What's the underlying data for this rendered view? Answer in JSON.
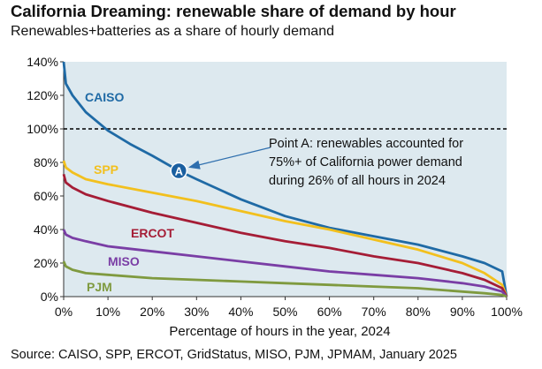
{
  "header": {
    "title": "California Dreaming: renewable share of demand by hour",
    "subtitle": "Renewables+batteries as a share of hourly demand"
  },
  "footer": {
    "source": "Source: CAISO, SPP, ERCOT, GridStatus, MISO, PJM, JPMAM, January 2025"
  },
  "annotation": {
    "marker": "A",
    "marker_x": 26,
    "marker_y": 75,
    "lines": [
      "Point A: renewables accounted for",
      "75%+ of California power demand",
      "during 26% of all hours in 2024"
    ]
  },
  "colors": {
    "plot_bg": "#dde9ef",
    "reference_line": "#000000",
    "arrow": "#2f6fae",
    "marker_fill": "#1a5fa0"
  },
  "chart_data": {
    "type": "line",
    "xlabel": "Percentage of hours in the year, 2024",
    "ylabel": "",
    "xlim": [
      0,
      100
    ],
    "ylim": [
      0,
      140
    ],
    "x_ticks": [
      0,
      10,
      20,
      30,
      40,
      50,
      60,
      70,
      80,
      90,
      100
    ],
    "y_ticks": [
      0,
      20,
      40,
      60,
      80,
      100,
      120,
      140
    ],
    "x_tick_labels": [
      "0%",
      "10%",
      "20%",
      "30%",
      "40%",
      "50%",
      "60%",
      "70%",
      "80%",
      "90%",
      "100%"
    ],
    "y_tick_labels": [
      "0%",
      "20%",
      "40%",
      "60%",
      "80%",
      "100%",
      "120%",
      "140%"
    ],
    "reference_line": {
      "y": 100,
      "style": "dashed"
    },
    "grid": false,
    "series": [
      {
        "name": "CAISO",
        "color": "#1f6aa5",
        "x": [
          0,
          0.5,
          2,
          5,
          10,
          15,
          20,
          26,
          30,
          40,
          50,
          60,
          70,
          80,
          90,
          95,
          99,
          100
        ],
        "y": [
          140,
          127,
          120,
          110,
          99,
          91,
          84,
          75,
          70,
          58,
          48,
          41,
          36,
          31,
          24,
          20,
          15,
          0
        ]
      },
      {
        "name": "SPP",
        "color": "#f2c01e",
        "x": [
          0,
          0.5,
          2,
          5,
          10,
          20,
          30,
          40,
          50,
          60,
          70,
          80,
          90,
          95,
          99,
          100
        ],
        "y": [
          81,
          77,
          74,
          70,
          67,
          62,
          57,
          51,
          45,
          40,
          34,
          28,
          20,
          14,
          7,
          0
        ]
      },
      {
        "name": "ERCOT",
        "color": "#a51d36",
        "x": [
          0,
          0.5,
          2,
          5,
          10,
          20,
          30,
          40,
          50,
          60,
          70,
          80,
          90,
          95,
          99,
          100
        ],
        "y": [
          73,
          68,
          65,
          61,
          57,
          50,
          44,
          38,
          33,
          29,
          24,
          20,
          14,
          10,
          5,
          0
        ]
      },
      {
        "name": "MISO",
        "color": "#7a3ea5",
        "x": [
          0,
          0.5,
          2,
          5,
          10,
          20,
          30,
          40,
          50,
          60,
          70,
          80,
          90,
          95,
          99,
          100
        ],
        "y": [
          40,
          37,
          35,
          33,
          30,
          27,
          24,
          21,
          18,
          15,
          13,
          11,
          8,
          6,
          3,
          0
        ]
      },
      {
        "name": "PJM",
        "color": "#7f9a3f",
        "x": [
          0,
          0.5,
          2,
          5,
          10,
          20,
          30,
          40,
          50,
          60,
          70,
          80,
          90,
          95,
          99,
          100
        ],
        "y": [
          21,
          18,
          16,
          14,
          13,
          11,
          10,
          9,
          8,
          7,
          6,
          5,
          3,
          2,
          1,
          0
        ]
      }
    ]
  }
}
